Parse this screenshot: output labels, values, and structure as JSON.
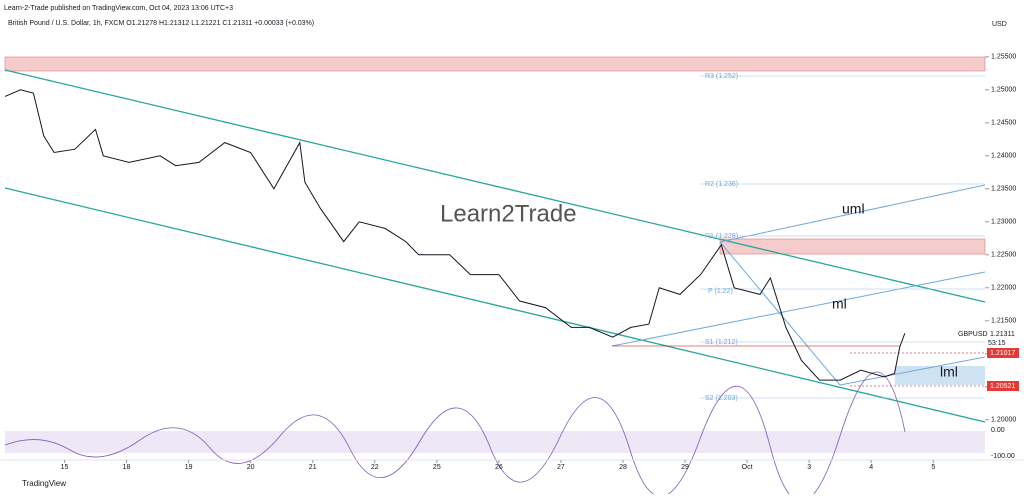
{
  "header": {
    "publisher": "Learn-2-Trade published on TradingView.com, Oct 04, 2023 13:06 UTC+3",
    "symbol_line": "British Pound / U.S. Dollar, 1h, FXCM  O1.21278  H1.21312  L1.21221  C1.21311  +0.00033 (+0.03%)"
  },
  "chart_data": {
    "type": "line",
    "currency": "USD",
    "color": "#131722",
    "x": [
      -23,
      -17,
      -12,
      -8,
      -4,
      4,
      12,
      15,
      25,
      37,
      43,
      52,
      62,
      72,
      81,
      91,
      93,
      99,
      108,
      114,
      124,
      132,
      137,
      149,
      157,
      168,
      176,
      186,
      196,
      203,
      212,
      219,
      226,
      230,
      238,
      246,
      254,
      259,
      269,
      273,
      279,
      285,
      292,
      300,
      308,
      317,
      321,
      323,
      325
    ],
    "values": [
      1.249,
      1.25,
      1.2495,
      1.243,
      1.2405,
      1.241,
      1.244,
      1.24,
      1.239,
      1.24,
      1.2385,
      1.239,
      1.242,
      1.2405,
      1.235,
      1.242,
      1.236,
      1.232,
      1.227,
      1.23,
      1.229,
      1.227,
      1.225,
      1.225,
      1.222,
      1.222,
      1.218,
      1.217,
      1.214,
      1.214,
      1.2125,
      1.214,
      1.2145,
      1.22,
      1.219,
      1.222,
      1.2265,
      1.22,
      1.219,
      1.2215,
      1.214,
      1.209,
      1.206,
      1.206,
      1.2075,
      1.2065,
      1.207,
      1.211,
      1.2131
    ],
    "xlim": [
      -23,
      356
    ],
    "ylim": [
      1.1992,
      1.2621
    ],
    "xticks": [
      {
        "value": 0,
        "label": "15"
      },
      {
        "value": 24,
        "label": "18"
      },
      {
        "value": 48,
        "label": "19"
      },
      {
        "value": 72,
        "label": "20"
      },
      {
        "value": 96,
        "label": "21"
      },
      {
        "value": 120,
        "label": "22"
      },
      {
        "value": 144,
        "label": "25"
      },
      {
        "value": 168,
        "label": "26"
      },
      {
        "value": 192,
        "label": "27"
      },
      {
        "value": 216,
        "label": "28"
      },
      {
        "value": 240,
        "label": "29"
      },
      {
        "value": 264,
        "label": "Oct"
      },
      {
        "value": 288,
        "label": "3"
      },
      {
        "value": 312,
        "label": "4"
      },
      {
        "value": 336,
        "label": "5"
      }
    ],
    "yticks": [
      {
        "value": 1.255,
        "label": "1.25500"
      },
      {
        "value": 1.25,
        "label": "1.25000"
      },
      {
        "value": 1.245,
        "label": "1.24500"
      },
      {
        "value": 1.24,
        "label": "1.24000"
      },
      {
        "value": 1.235,
        "label": "1.23500"
      },
      {
        "value": 1.23,
        "label": "1.23000"
      },
      {
        "value": 1.225,
        "label": "1.22500"
      },
      {
        "value": 1.22,
        "label": "1.22000"
      },
      {
        "value": 1.215,
        "label": "1.21500"
      },
      {
        "value": 1.21,
        "label": "1.21000"
      },
      {
        "value": 1.205,
        "label": "1.20500"
      },
      {
        "value": 1.2,
        "label": "1.20000"
      }
    ],
    "annotations": [
      "R3 (1.252)",
      "R2 (1.236)",
      "R1 (1.228)",
      "P (1.22)",
      "S1 (1.212)",
      "S2 (1.203)",
      "uml",
      "ml",
      "lml",
      "GBPUSD",
      "53:15"
    ],
    "price_labels": [
      "1.21311",
      "1.21017",
      "1.20521"
    ],
    "rsi_ticks": [
      "0.00",
      "-100.00"
    ]
  },
  "watermark": "Learn2Trade",
  "footer": "TradingView"
}
